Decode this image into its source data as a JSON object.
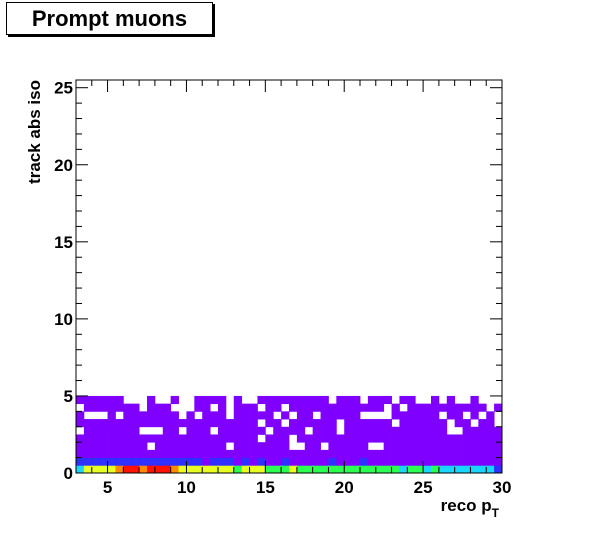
{
  "title": "Prompt muons",
  "chart_data": {
    "type": "heatmap",
    "title": "Prompt muons",
    "xlabel": "reco p",
    "xlabel_subscript": "T",
    "ylabel": "track abs iso",
    "xlim": [
      3,
      30
    ],
    "ylim": [
      0,
      25.5
    ],
    "xticks": [
      5,
      10,
      15,
      20,
      25,
      30
    ],
    "yticks": [
      0,
      5,
      10,
      15,
      20,
      25
    ],
    "bins": {
      "x_width": 0.5,
      "y_width": 0.5
    },
    "colors": {
      "purple": "#7f00ff",
      "blue": "#2f2fff",
      "cyan": "#19d6ff",
      "green": "#2bff52",
      "yellow": "#e9ff22",
      "orange": "#ff8a00",
      "red": "#ff1200"
    },
    "bottom_row_colors": [
      "cyan",
      "yellow",
      "yellow",
      "yellow",
      "yellow",
      "orange",
      "red",
      "red",
      "orange",
      "red",
      "red",
      "red",
      "orange",
      "yellow",
      "yellow",
      "yellow",
      "yellow",
      "yellow",
      "yellow",
      "yellow",
      "green",
      "yellow",
      "yellow",
      "yellow",
      "green",
      "green",
      "green",
      "yellow",
      "green",
      "green",
      "green",
      "green",
      "green",
      "green",
      "green",
      "green",
      "green",
      "green",
      "green",
      "green",
      "green",
      "cyan",
      "green",
      "green",
      "cyan",
      "green",
      "cyan",
      "cyan",
      "cyan",
      "cyan",
      "cyan",
      "cyan",
      "cyan",
      "blue"
    ],
    "second_row_colors": [
      "blue",
      "blue",
      "blue",
      "blue",
      "blue",
      "blue",
      "blue",
      "blue",
      "blue",
      "blue",
      "blue",
      "blue",
      "blue",
      "blue",
      "blue",
      "blue",
      "purple",
      "blue",
      "blue",
      "blue",
      "purple",
      "blue",
      "purple",
      "blue",
      "purple",
      "purple",
      "blue",
      "purple",
      "purple",
      "purple",
      "purple",
      "purple",
      "blue",
      "purple",
      "purple",
      "purple",
      "blue",
      "purple",
      "purple",
      "purple",
      "purple",
      "purple",
      "purple",
      "purple",
      "purple",
      "purple",
      "purple",
      "purple",
      "purple",
      "purple",
      "purple",
      "purple",
      "purple",
      "purple"
    ],
    "occupancy_upper_edge": 5,
    "occupancy_density_by_iso": [
      {
        "iso_max": 1.5,
        "fill_fraction": 1.0
      },
      {
        "iso_max": 2.5,
        "fill_fraction": 0.92
      },
      {
        "iso_max": 3.5,
        "fill_fraction": 0.8
      },
      {
        "iso_max": 4.5,
        "fill_fraction": 0.68
      },
      {
        "iso_max": 5.0,
        "fill_fraction": 0.45
      }
    ]
  }
}
